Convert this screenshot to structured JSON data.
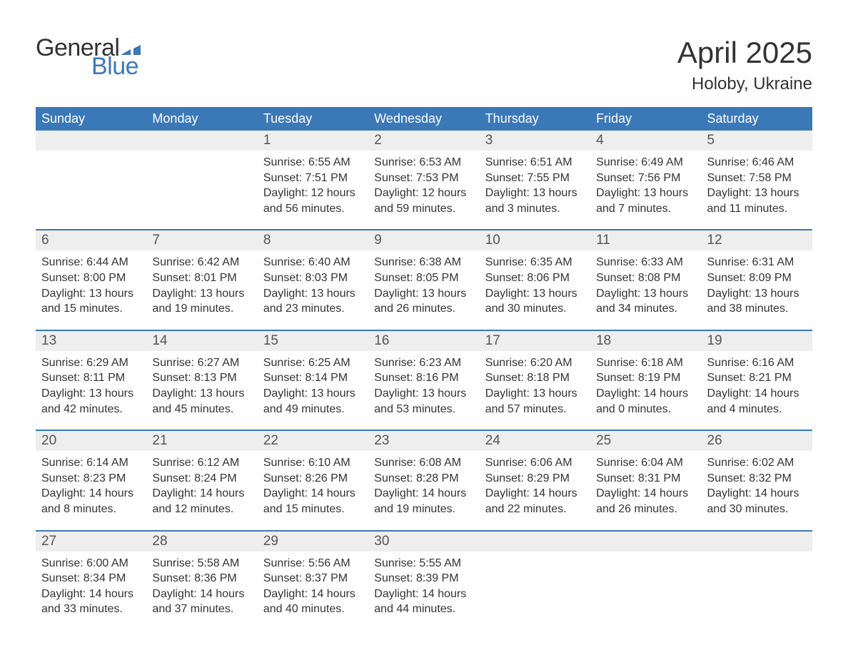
{
  "logo": {
    "general": "General",
    "blue": "Blue",
    "icon_color": "#3b78b8"
  },
  "title": "April 2025",
  "location": "Holoby, Ukraine",
  "day_headers": [
    "Sunday",
    "Monday",
    "Tuesday",
    "Wednesday",
    "Thursday",
    "Friday",
    "Saturday"
  ],
  "colors": {
    "header_bg": "#3b78b8",
    "header_text": "#ffffff",
    "daynum_bg": "#eeeeee",
    "border": "#3b78b8",
    "text": "#333333",
    "muted": "#555555",
    "background": "#ffffff"
  },
  "fonts": {
    "title_size": 42,
    "location_size": 24,
    "header_size": 18,
    "daynum_size": 19,
    "body_size": 16
  },
  "weeks": [
    {
      "days": [
        {
          "num": "",
          "sunrise": "",
          "sunset": "",
          "daylight": ""
        },
        {
          "num": "",
          "sunrise": "",
          "sunset": "",
          "daylight": ""
        },
        {
          "num": "1",
          "sunrise": "Sunrise: 6:55 AM",
          "sunset": "Sunset: 7:51 PM",
          "daylight": "Daylight: 12 hours and 56 minutes."
        },
        {
          "num": "2",
          "sunrise": "Sunrise: 6:53 AM",
          "sunset": "Sunset: 7:53 PM",
          "daylight": "Daylight: 12 hours and 59 minutes."
        },
        {
          "num": "3",
          "sunrise": "Sunrise: 6:51 AM",
          "sunset": "Sunset: 7:55 PM",
          "daylight": "Daylight: 13 hours and 3 minutes."
        },
        {
          "num": "4",
          "sunrise": "Sunrise: 6:49 AM",
          "sunset": "Sunset: 7:56 PM",
          "daylight": "Daylight: 13 hours and 7 minutes."
        },
        {
          "num": "5",
          "sunrise": "Sunrise: 6:46 AM",
          "sunset": "Sunset: 7:58 PM",
          "daylight": "Daylight: 13 hours and 11 minutes."
        }
      ]
    },
    {
      "days": [
        {
          "num": "6",
          "sunrise": "Sunrise: 6:44 AM",
          "sunset": "Sunset: 8:00 PM",
          "daylight": "Daylight: 13 hours and 15 minutes."
        },
        {
          "num": "7",
          "sunrise": "Sunrise: 6:42 AM",
          "sunset": "Sunset: 8:01 PM",
          "daylight": "Daylight: 13 hours and 19 minutes."
        },
        {
          "num": "8",
          "sunrise": "Sunrise: 6:40 AM",
          "sunset": "Sunset: 8:03 PM",
          "daylight": "Daylight: 13 hours and 23 minutes."
        },
        {
          "num": "9",
          "sunrise": "Sunrise: 6:38 AM",
          "sunset": "Sunset: 8:05 PM",
          "daylight": "Daylight: 13 hours and 26 minutes."
        },
        {
          "num": "10",
          "sunrise": "Sunrise: 6:35 AM",
          "sunset": "Sunset: 8:06 PM",
          "daylight": "Daylight: 13 hours and 30 minutes."
        },
        {
          "num": "11",
          "sunrise": "Sunrise: 6:33 AM",
          "sunset": "Sunset: 8:08 PM",
          "daylight": "Daylight: 13 hours and 34 minutes."
        },
        {
          "num": "12",
          "sunrise": "Sunrise: 6:31 AM",
          "sunset": "Sunset: 8:09 PM",
          "daylight": "Daylight: 13 hours and 38 minutes."
        }
      ]
    },
    {
      "days": [
        {
          "num": "13",
          "sunrise": "Sunrise: 6:29 AM",
          "sunset": "Sunset: 8:11 PM",
          "daylight": "Daylight: 13 hours and 42 minutes."
        },
        {
          "num": "14",
          "sunrise": "Sunrise: 6:27 AM",
          "sunset": "Sunset: 8:13 PM",
          "daylight": "Daylight: 13 hours and 45 minutes."
        },
        {
          "num": "15",
          "sunrise": "Sunrise: 6:25 AM",
          "sunset": "Sunset: 8:14 PM",
          "daylight": "Daylight: 13 hours and 49 minutes."
        },
        {
          "num": "16",
          "sunrise": "Sunrise: 6:23 AM",
          "sunset": "Sunset: 8:16 PM",
          "daylight": "Daylight: 13 hours and 53 minutes."
        },
        {
          "num": "17",
          "sunrise": "Sunrise: 6:20 AM",
          "sunset": "Sunset: 8:18 PM",
          "daylight": "Daylight: 13 hours and 57 minutes."
        },
        {
          "num": "18",
          "sunrise": "Sunrise: 6:18 AM",
          "sunset": "Sunset: 8:19 PM",
          "daylight": "Daylight: 14 hours and 0 minutes."
        },
        {
          "num": "19",
          "sunrise": "Sunrise: 6:16 AM",
          "sunset": "Sunset: 8:21 PM",
          "daylight": "Daylight: 14 hours and 4 minutes."
        }
      ]
    },
    {
      "days": [
        {
          "num": "20",
          "sunrise": "Sunrise: 6:14 AM",
          "sunset": "Sunset: 8:23 PM",
          "daylight": "Daylight: 14 hours and 8 minutes."
        },
        {
          "num": "21",
          "sunrise": "Sunrise: 6:12 AM",
          "sunset": "Sunset: 8:24 PM",
          "daylight": "Daylight: 14 hours and 12 minutes."
        },
        {
          "num": "22",
          "sunrise": "Sunrise: 6:10 AM",
          "sunset": "Sunset: 8:26 PM",
          "daylight": "Daylight: 14 hours and 15 minutes."
        },
        {
          "num": "23",
          "sunrise": "Sunrise: 6:08 AM",
          "sunset": "Sunset: 8:28 PM",
          "daylight": "Daylight: 14 hours and 19 minutes."
        },
        {
          "num": "24",
          "sunrise": "Sunrise: 6:06 AM",
          "sunset": "Sunset: 8:29 PM",
          "daylight": "Daylight: 14 hours and 22 minutes."
        },
        {
          "num": "25",
          "sunrise": "Sunrise: 6:04 AM",
          "sunset": "Sunset: 8:31 PM",
          "daylight": "Daylight: 14 hours and 26 minutes."
        },
        {
          "num": "26",
          "sunrise": "Sunrise: 6:02 AM",
          "sunset": "Sunset: 8:32 PM",
          "daylight": "Daylight: 14 hours and 30 minutes."
        }
      ]
    },
    {
      "days": [
        {
          "num": "27",
          "sunrise": "Sunrise: 6:00 AM",
          "sunset": "Sunset: 8:34 PM",
          "daylight": "Daylight: 14 hours and 33 minutes."
        },
        {
          "num": "28",
          "sunrise": "Sunrise: 5:58 AM",
          "sunset": "Sunset: 8:36 PM",
          "daylight": "Daylight: 14 hours and 37 minutes."
        },
        {
          "num": "29",
          "sunrise": "Sunrise: 5:56 AM",
          "sunset": "Sunset: 8:37 PM",
          "daylight": "Daylight: 14 hours and 40 minutes."
        },
        {
          "num": "30",
          "sunrise": "Sunrise: 5:55 AM",
          "sunset": "Sunset: 8:39 PM",
          "daylight": "Daylight: 14 hours and 44 minutes."
        },
        {
          "num": "",
          "sunrise": "",
          "sunset": "",
          "daylight": ""
        },
        {
          "num": "",
          "sunrise": "",
          "sunset": "",
          "daylight": ""
        },
        {
          "num": "",
          "sunrise": "",
          "sunset": "",
          "daylight": ""
        }
      ]
    }
  ]
}
